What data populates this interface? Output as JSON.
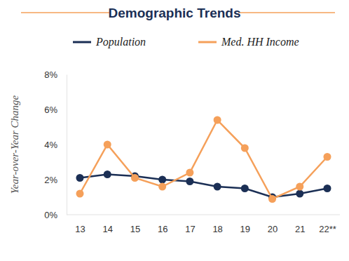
{
  "chart_data": {
    "type": "line",
    "title": "Demographic Trends",
    "y_label": "Year-over-Year Change",
    "categories": [
      "13",
      "14",
      "15",
      "16",
      "17",
      "18",
      "19",
      "20",
      "21",
      "22**"
    ],
    "series": [
      {
        "name": "Population",
        "color": "#1b2f55",
        "values": [
          2.1,
          2.3,
          2.2,
          2.0,
          1.9,
          1.6,
          1.5,
          1.0,
          1.2,
          1.5
        ]
      },
      {
        "name": "Med. HH Income",
        "color": "#f5a05a",
        "values": [
          1.2,
          4.0,
          2.1,
          1.6,
          2.4,
          5.4,
          3.8,
          0.9,
          1.6,
          3.3
        ]
      }
    ],
    "ylim": [
      0,
      8
    ],
    "yticks": [
      {
        "value": 0,
        "label": "0%"
      },
      {
        "value": 2,
        "label": "2%"
      },
      {
        "value": 4,
        "label": "4%"
      },
      {
        "value": 6,
        "label": "6%"
      },
      {
        "value": 8,
        "label": "8%"
      }
    ],
    "grid": false,
    "legend": "top",
    "marker": "circle"
  }
}
